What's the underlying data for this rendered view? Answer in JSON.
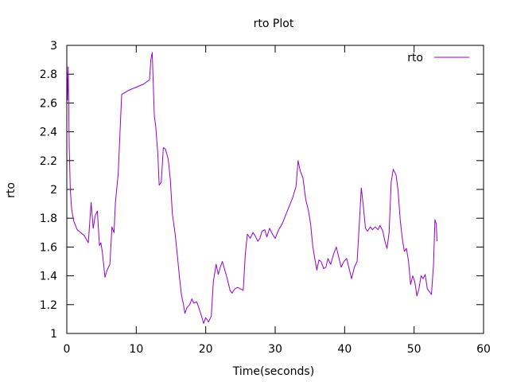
{
  "chart_data": {
    "type": "line",
    "title": "rto Plot",
    "xlabel": "Time(seconds)",
    "ylabel": "rto",
    "xlim": [
      0,
      60
    ],
    "ylim": [
      1,
      3
    ],
    "x_ticks": [
      0,
      10,
      20,
      30,
      40,
      50,
      60
    ],
    "y_ticks": [
      1,
      1.2,
      1.4,
      1.6,
      1.8,
      2,
      2.2,
      2.4,
      2.6,
      2.8,
      3
    ],
    "y_tick_labels": [
      "1",
      "1.2",
      "1.4",
      "1.6",
      "1.8",
      "2",
      "2.2",
      "2.4",
      "2.6",
      "2.8",
      "3"
    ],
    "grid": false,
    "legend_position": "top-right",
    "series": [
      {
        "name": "rto",
        "color": "#9400d3",
        "points": [
          [
            0.0,
            2.88
          ],
          [
            0.1,
            2.62
          ],
          [
            0.2,
            2.85
          ],
          [
            0.35,
            2.3
          ],
          [
            0.5,
            2.0
          ],
          [
            0.7,
            1.86
          ],
          [
            1.0,
            1.78
          ],
          [
            1.5,
            1.72
          ],
          [
            2.0,
            1.7
          ],
          [
            2.5,
            1.68
          ],
          [
            3.1,
            1.63
          ],
          [
            3.5,
            1.91
          ],
          [
            3.8,
            1.73
          ],
          [
            4.1,
            1.82
          ],
          [
            4.4,
            1.85
          ],
          [
            4.7,
            1.61
          ],
          [
            4.9,
            1.63
          ],
          [
            5.1,
            1.57
          ],
          [
            5.5,
            1.39
          ],
          [
            5.8,
            1.44
          ],
          [
            6.2,
            1.48
          ],
          [
            6.5,
            1.74
          ],
          [
            6.8,
            1.7
          ],
          [
            7.0,
            1.91
          ],
          [
            7.4,
            2.11
          ],
          [
            7.9,
            2.66
          ],
          [
            9.0,
            2.69
          ],
          [
            10.0,
            2.71
          ],
          [
            11.0,
            2.73
          ],
          [
            11.9,
            2.76
          ],
          [
            12.1,
            2.9
          ],
          [
            12.3,
            2.95
          ],
          [
            12.6,
            2.51
          ],
          [
            12.8,
            2.44
          ],
          [
            13.1,
            2.25
          ],
          [
            13.3,
            2.03
          ],
          [
            13.6,
            2.05
          ],
          [
            13.9,
            2.29
          ],
          [
            14.2,
            2.28
          ],
          [
            14.6,
            2.21
          ],
          [
            14.9,
            2.07
          ],
          [
            15.2,
            1.83
          ],
          [
            15.6,
            1.69
          ],
          [
            15.9,
            1.55
          ],
          [
            16.2,
            1.4
          ],
          [
            16.5,
            1.27
          ],
          [
            16.8,
            1.2
          ],
          [
            17.0,
            1.14
          ],
          [
            17.3,
            1.18
          ],
          [
            17.7,
            1.2
          ],
          [
            18.0,
            1.24
          ],
          [
            18.3,
            1.21
          ],
          [
            18.7,
            1.22
          ],
          [
            19.0,
            1.18
          ],
          [
            19.4,
            1.12
          ],
          [
            19.7,
            1.07
          ],
          [
            20.0,
            1.11
          ],
          [
            20.4,
            1.08
          ],
          [
            20.8,
            1.12
          ],
          [
            21.1,
            1.36
          ],
          [
            21.5,
            1.48
          ],
          [
            21.8,
            1.41
          ],
          [
            22.1,
            1.46
          ],
          [
            22.4,
            1.5
          ],
          [
            22.8,
            1.43
          ],
          [
            23.1,
            1.38
          ],
          [
            23.5,
            1.3
          ],
          [
            23.8,
            1.28
          ],
          [
            24.2,
            1.31
          ],
          [
            24.6,
            1.32
          ],
          [
            25.0,
            1.31
          ],
          [
            25.4,
            1.3
          ],
          [
            25.7,
            1.55
          ],
          [
            26.0,
            1.69
          ],
          [
            26.4,
            1.66
          ],
          [
            26.8,
            1.7
          ],
          [
            27.1,
            1.68
          ],
          [
            27.5,
            1.64
          ],
          [
            27.8,
            1.66
          ],
          [
            28.1,
            1.71
          ],
          [
            28.5,
            1.72
          ],
          [
            28.8,
            1.67
          ],
          [
            29.2,
            1.73
          ],
          [
            29.6,
            1.69
          ],
          [
            30.0,
            1.66
          ],
          [
            30.5,
            1.72
          ],
          [
            31.0,
            1.76
          ],
          [
            31.5,
            1.82
          ],
          [
            32.0,
            1.88
          ],
          [
            32.5,
            1.94
          ],
          [
            33.0,
            2.02
          ],
          [
            33.3,
            2.2
          ],
          [
            33.6,
            2.13
          ],
          [
            34.0,
            2.08
          ],
          [
            34.4,
            1.93
          ],
          [
            34.8,
            1.85
          ],
          [
            35.1,
            1.76
          ],
          [
            35.4,
            1.61
          ],
          [
            35.7,
            1.52
          ],
          [
            36.0,
            1.44
          ],
          [
            36.3,
            1.51
          ],
          [
            36.6,
            1.5
          ],
          [
            37.0,
            1.45
          ],
          [
            37.3,
            1.46
          ],
          [
            37.6,
            1.52
          ],
          [
            38.0,
            1.48
          ],
          [
            38.4,
            1.55
          ],
          [
            38.8,
            1.6
          ],
          [
            39.2,
            1.52
          ],
          [
            39.5,
            1.46
          ],
          [
            39.9,
            1.5
          ],
          [
            40.3,
            1.52
          ],
          [
            40.7,
            1.44
          ],
          [
            41.0,
            1.38
          ],
          [
            41.4,
            1.46
          ],
          [
            41.8,
            1.5
          ],
          [
            42.1,
            1.75
          ],
          [
            42.4,
            2.01
          ],
          [
            42.7,
            1.88
          ],
          [
            43.0,
            1.73
          ],
          [
            43.3,
            1.71
          ],
          [
            43.7,
            1.74
          ],
          [
            44.0,
            1.72
          ],
          [
            44.4,
            1.74
          ],
          [
            44.8,
            1.72
          ],
          [
            45.1,
            1.75
          ],
          [
            45.5,
            1.71
          ],
          [
            45.8,
            1.64
          ],
          [
            46.1,
            1.59
          ],
          [
            46.4,
            1.7
          ],
          [
            46.7,
            2.05
          ],
          [
            47.0,
            2.14
          ],
          [
            47.4,
            2.1
          ],
          [
            47.7,
            1.99
          ],
          [
            48.0,
            1.79
          ],
          [
            48.3,
            1.66
          ],
          [
            48.6,
            1.57
          ],
          [
            48.9,
            1.59
          ],
          [
            49.2,
            1.5
          ],
          [
            49.5,
            1.34
          ],
          [
            49.8,
            1.4
          ],
          [
            50.1,
            1.36
          ],
          [
            50.4,
            1.26
          ],
          [
            50.7,
            1.31
          ],
          [
            51.0,
            1.4
          ],
          [
            51.3,
            1.38
          ],
          [
            51.6,
            1.41
          ],
          [
            51.9,
            1.31
          ],
          [
            52.2,
            1.29
          ],
          [
            52.5,
            1.27
          ],
          [
            52.8,
            1.48
          ],
          [
            53.0,
            1.79
          ],
          [
            53.2,
            1.76
          ],
          [
            53.3,
            1.64
          ]
        ]
      }
    ]
  }
}
